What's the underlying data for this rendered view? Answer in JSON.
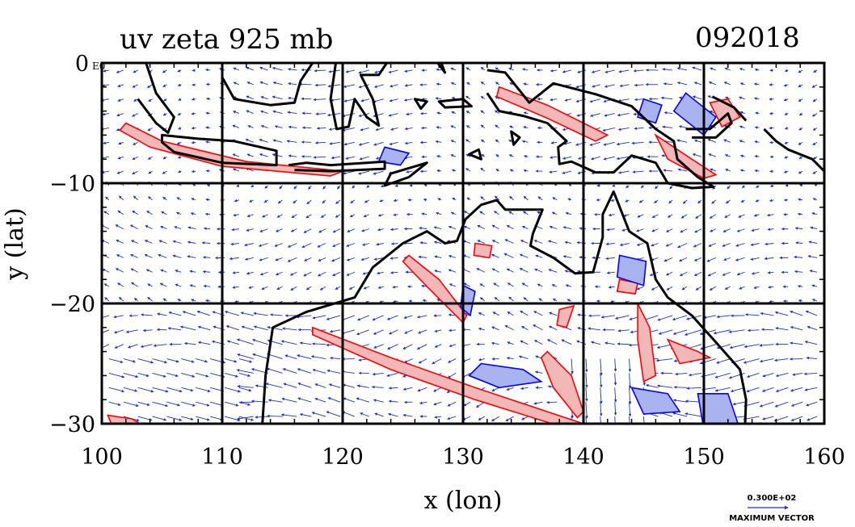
{
  "title_left": "uv zeta 925 mb",
  "title_right": "092018",
  "corner_label": "E0",
  "x_axis_label": "x (lon)",
  "y_axis_label": "y (lat)",
  "x_ticks": [
    "100",
    "110",
    "120",
    "130",
    "140",
    "150",
    "160"
  ],
  "y_ticks": [
    "0",
    "−10",
    "−20",
    "−30"
  ],
  "vector_key": {
    "value": "0.300E+02",
    "label": "MAXIMUM VECTOR"
  },
  "colors": {
    "positive_contour": "#ff0000",
    "negative_contour": "#0000ff",
    "positive_fill": "#f2b8b8",
    "negative_fill": "#a9b3f0",
    "vectors": "#1a2fd6",
    "coast": "#000000"
  },
  "chart_data": {
    "type": "map",
    "fields": [
      "wind vectors (u,v)",
      "relative vorticity zeta"
    ],
    "level": "925 mb",
    "xlim": [
      100,
      160
    ],
    "ylim": [
      -30,
      0
    ],
    "grid": true,
    "grid_lines_x": [
      110,
      120,
      130,
      140,
      150
    ],
    "grid_lines_y": [
      -10,
      -20
    ]
  }
}
